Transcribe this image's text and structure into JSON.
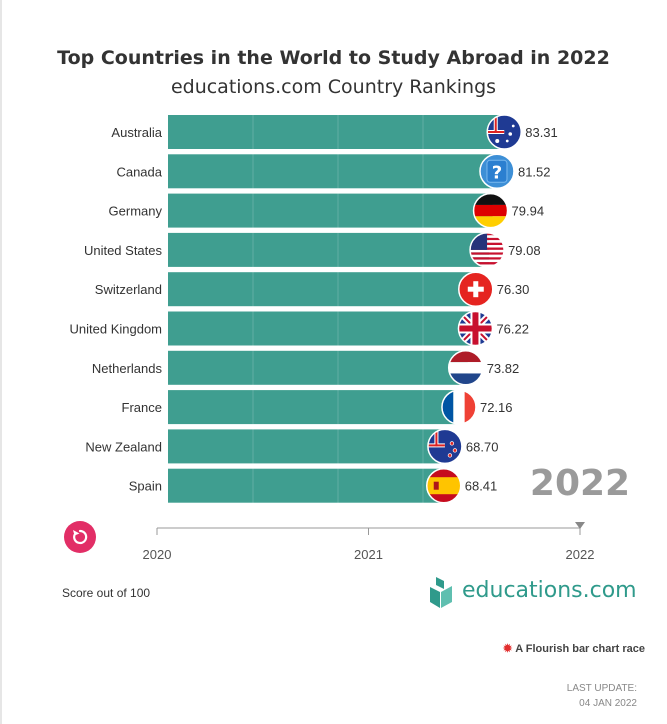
{
  "chart_data": {
    "type": "bar",
    "title": "Top Countries in the World to Study Abroad in 2022",
    "subtitle": "educations.com Country Rankings",
    "categories": [
      "Australia",
      "Canada",
      "Germany",
      "United States",
      "Switzerland",
      "United Kingdom",
      "Netherlands",
      "France",
      "New Zealand",
      "Spain"
    ],
    "values": [
      83.31,
      81.52,
      79.94,
      79.08,
      76.3,
      76.22,
      73.82,
      72.16,
      68.7,
      68.41
    ],
    "value_labels": [
      "83.31",
      "81.52",
      "79.94",
      "79.08",
      "76.30",
      "76.22",
      "73.82",
      "72.16",
      "68.70",
      "68.41"
    ],
    "flag_icons": [
      "flag-australia-icon",
      "question-mark-icon",
      "flag-germany-icon",
      "flag-united-states-icon",
      "flag-switzerland-icon",
      "flag-united-kingdom-icon",
      "flag-netherlands-icon",
      "flag-france-icon",
      "flag-new-zealand-icon",
      "flag-spain-icon"
    ],
    "current_year": "2022",
    "timeline": {
      "ticks": [
        "2020",
        "2021",
        "2022"
      ],
      "position": 1.0
    },
    "bar_color": "#3f9e90",
    "grid": true
  },
  "replay_icon": "replay-icon",
  "score_note": "Score out of 100",
  "brand": {
    "name": "educations.com",
    "icon": "book-logo-icon",
    "color": "#2f9a8b"
  },
  "flourish_credit": "A Flourish bar chart race",
  "last_update": {
    "label": "LAST UPDATE:",
    "date": "04 JAN 2022"
  },
  "colors": {
    "accent": "#e22e66",
    "bar": "#3f9e90",
    "year": "#9a9a9a"
  }
}
